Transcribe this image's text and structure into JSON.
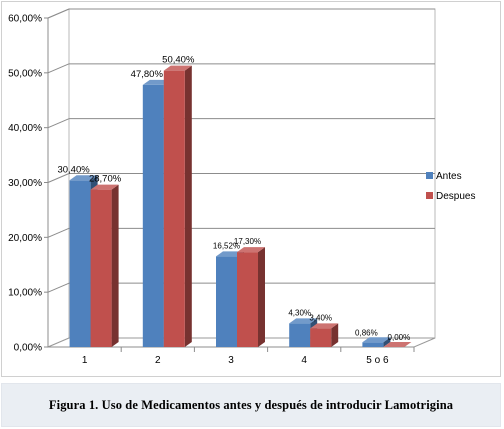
{
  "chart_data": {
    "type": "bar",
    "categories": [
      "1",
      "2",
      "3",
      "4",
      "5 o 6"
    ],
    "series": [
      {
        "name": "Antes",
        "values": [
          30.4,
          47.8,
          16.52,
          4.3,
          0.86
        ],
        "labels": [
          "30,40%",
          "47,80%",
          "16,52%",
          "4,30%",
          "0,86%"
        ]
      },
      {
        "name": "Despues",
        "values": [
          28.7,
          50.4,
          17.3,
          3.4,
          0.0
        ],
        "labels": [
          "28,70%",
          "50,40%",
          "17,30%",
          "3,40%",
          "0,00%"
        ]
      }
    ],
    "y_ticks": [
      "0,00%",
      "10,00%",
      "20,00%",
      "30,00%",
      "40,00%",
      "50,00%",
      "60,00%"
    ],
    "ylim": [
      0,
      60
    ],
    "grid": true,
    "legend": "right",
    "colors": {
      "Antes": "#4f81bd",
      "Despues": "#c0504d"
    },
    "style": "3d-clustered-column"
  },
  "caption": "Figura 1. Uso de Medicamentos antes y después de introducir Lamotrigina"
}
